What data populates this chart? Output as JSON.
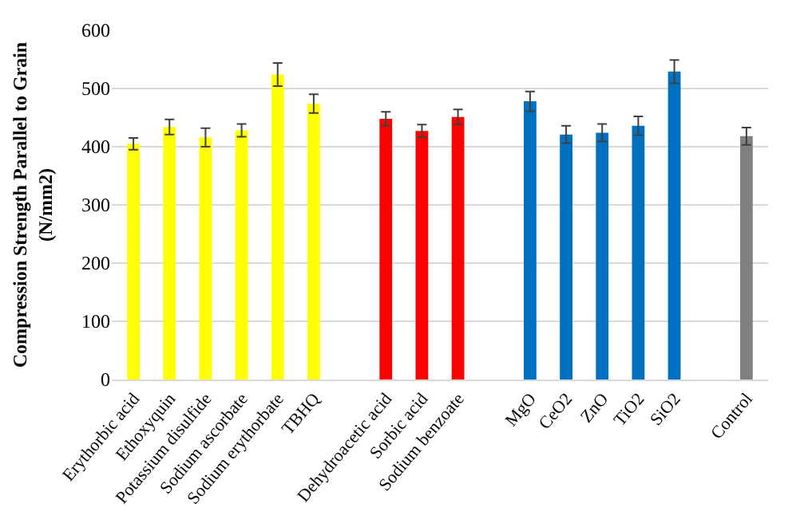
{
  "chart_data": {
    "type": "bar",
    "ylabel": "Compression Strength Parallel to Grain\n(N/mm2)",
    "categories": [
      "Erythorbic acid",
      "Ethoxyquin",
      "Potassium disulfide",
      "Sodium ascorbate",
      "Sodium erythorbate",
      "TBHQ",
      null,
      "Dehydroacetic acid",
      "Sorbic acid",
      "Sodium benzoate",
      null,
      "MgO",
      "CeO2",
      "ZnO",
      "TiO2",
      "SiO2",
      null,
      "Control"
    ],
    "values": [
      405,
      434,
      416,
      428,
      524,
      474,
      null,
      448,
      427,
      451,
      null,
      478,
      421,
      424,
      436,
      529,
      null,
      418
    ],
    "errors": [
      10,
      13,
      16,
      11,
      20,
      16,
      null,
      12,
      11,
      13,
      null,
      17,
      15,
      15,
      16,
      20,
      null,
      15
    ],
    "colors": [
      "#ffff00",
      "#ffff00",
      "#ffff00",
      "#ffff00",
      "#ffff00",
      "#ffff00",
      null,
      "#ff0000",
      "#ff0000",
      "#ff0000",
      null,
      "#0070c0",
      "#0070c0",
      "#0070c0",
      "#0070c0",
      "#0070c0",
      null,
      "#808080"
    ],
    "ylim": [
      0,
      600
    ],
    "yticks": [
      0,
      100,
      200,
      300,
      400,
      500,
      600
    ],
    "grid": "y",
    "legend": false
  }
}
